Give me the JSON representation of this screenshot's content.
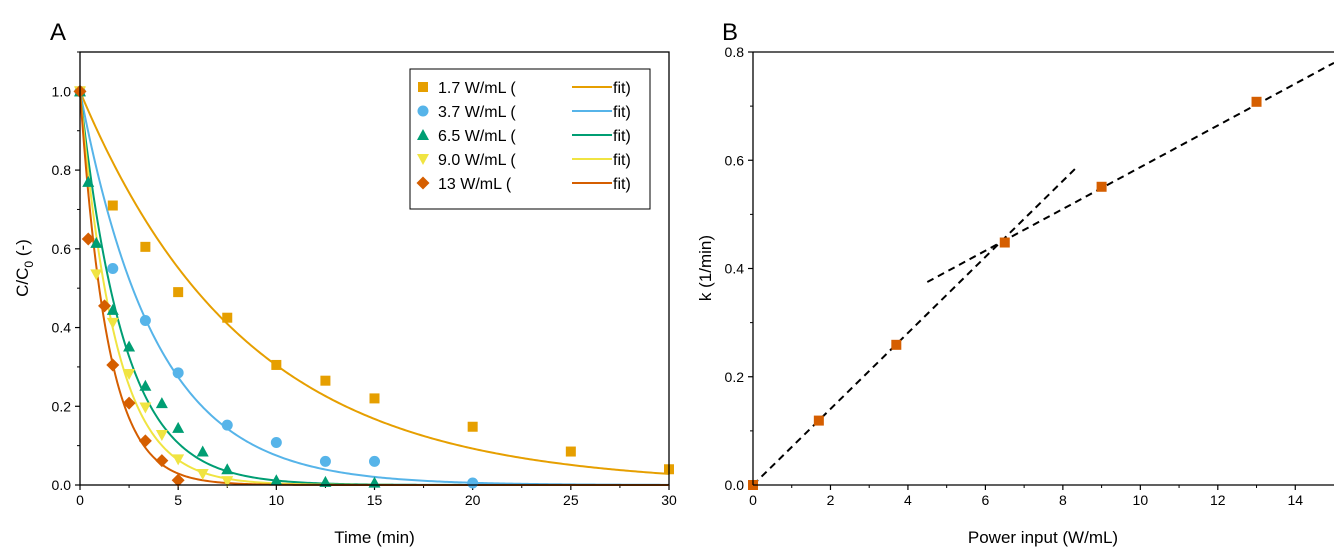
{
  "colors": {
    "s1": "#E69F00",
    "s2": "#56B4E9",
    "s3": "#009E73",
    "s4": "#F0E442",
    "s5": "#D55E00",
    "markerB": "#D55E00",
    "dashed": "#000000"
  },
  "chart_data": [
    {
      "type": "scatter",
      "panel_label": "A",
      "xlabel": "Time (min)",
      "ylabel_main": "C/C",
      "ylabel_sub": "0",
      "ylabel_tail": " (-)",
      "xlim": [
        0,
        30
      ],
      "ylim": [
        0,
        1.1
      ],
      "xticks": [
        0,
        5,
        10,
        15,
        20,
        25,
        30
      ],
      "yticks": [
        0.0,
        0.2,
        0.4,
        0.6,
        0.8,
        1.0
      ],
      "xtick_labels": [
        "0",
        "5",
        "10",
        "15",
        "20",
        "25",
        "30"
      ],
      "ytick_labels": [
        "0.0",
        "0.2",
        "0.4",
        "0.6",
        "0.8",
        "1.0"
      ],
      "legend_position": "top-right",
      "series": [
        {
          "name": "1.7 W/mL (",
          "fit_label": "fit)",
          "marker": "square",
          "color_key": "s1",
          "k": 0.119,
          "x": [
            0,
            1.67,
            3.33,
            5,
            7.5,
            10,
            12.5,
            15,
            20,
            25,
            30
          ],
          "y": [
            1.0,
            0.71,
            0.605,
            0.49,
            0.425,
            0.305,
            0.265,
            0.22,
            0.148,
            0.085,
            0.04
          ]
        },
        {
          "name": "3.7 W/mL (",
          "fit_label": "fit)",
          "marker": "circle",
          "color_key": "s2",
          "k": 0.259,
          "x": [
            0,
            1.67,
            3.33,
            5,
            7.5,
            10,
            12.5,
            15,
            20
          ],
          "y": [
            1.0,
            0.55,
            0.418,
            0.285,
            0.152,
            0.108,
            0.06,
            0.06,
            0.005
          ]
        },
        {
          "name": "6.5 W/mL (",
          "fit_label": "fit)",
          "marker": "triangle-up",
          "color_key": "s3",
          "k": 0.448,
          "x": [
            0,
            0.42,
            0.83,
            1.67,
            2.5,
            3.33,
            4.17,
            5,
            6.25,
            7.5,
            10,
            12.5,
            15
          ],
          "y": [
            1.0,
            0.77,
            0.615,
            0.445,
            0.352,
            0.252,
            0.208,
            0.145,
            0.085,
            0.04,
            0.012,
            0.008,
            0.006
          ]
        },
        {
          "name": "9.0 W/mL (",
          "fit_label": "fit)",
          "marker": "triangle-down",
          "color_key": "s4",
          "k": 0.551,
          "x": [
            0,
            0.83,
            1.67,
            2.5,
            3.33,
            4.17,
            5,
            6.25,
            7.5
          ],
          "y": [
            1.0,
            0.535,
            0.412,
            0.282,
            0.197,
            0.127,
            0.065,
            0.028,
            0.01
          ]
        },
        {
          "name": "13 W/mL  (",
          "fit_label": "fit)",
          "marker": "diamond",
          "color_key": "s5",
          "k": 0.708,
          "x": [
            0,
            0.42,
            1.25,
            1.67,
            2.5,
            3.33,
            4.17,
            5
          ],
          "y": [
            1.0,
            0.625,
            0.455,
            0.305,
            0.208,
            0.112,
            0.062,
            0.012
          ]
        }
      ]
    },
    {
      "type": "scatter",
      "panel_label": "B",
      "xlabel": "Power input (W/mL)",
      "ylabel": "k (1/min)",
      "xlim": [
        0,
        15
      ],
      "ylim": [
        0,
        0.8
      ],
      "xticks": [
        0,
        2,
        4,
        6,
        8,
        10,
        12,
        14
      ],
      "yticks": [
        0.0,
        0.2,
        0.4,
        0.6,
        0.8
      ],
      "xtick_labels": [
        "0",
        "2",
        "4",
        "6",
        "8",
        "10",
        "12",
        "14"
      ],
      "ytick_labels": [
        "0.0",
        "0.2",
        "0.4",
        "0.6",
        "0.8"
      ],
      "points": {
        "x": [
          0,
          1.7,
          3.7,
          6.5,
          9.0,
          13.0
        ],
        "y": [
          0.0,
          0.119,
          0.259,
          0.448,
          0.551,
          0.708
        ]
      },
      "trend_lines": [
        {
          "x": [
            0,
            8.4
          ],
          "y": [
            0.0,
            0.59
          ]
        },
        {
          "x": [
            4.5,
            15.0
          ],
          "y": [
            0.375,
            0.78
          ]
        }
      ]
    }
  ]
}
